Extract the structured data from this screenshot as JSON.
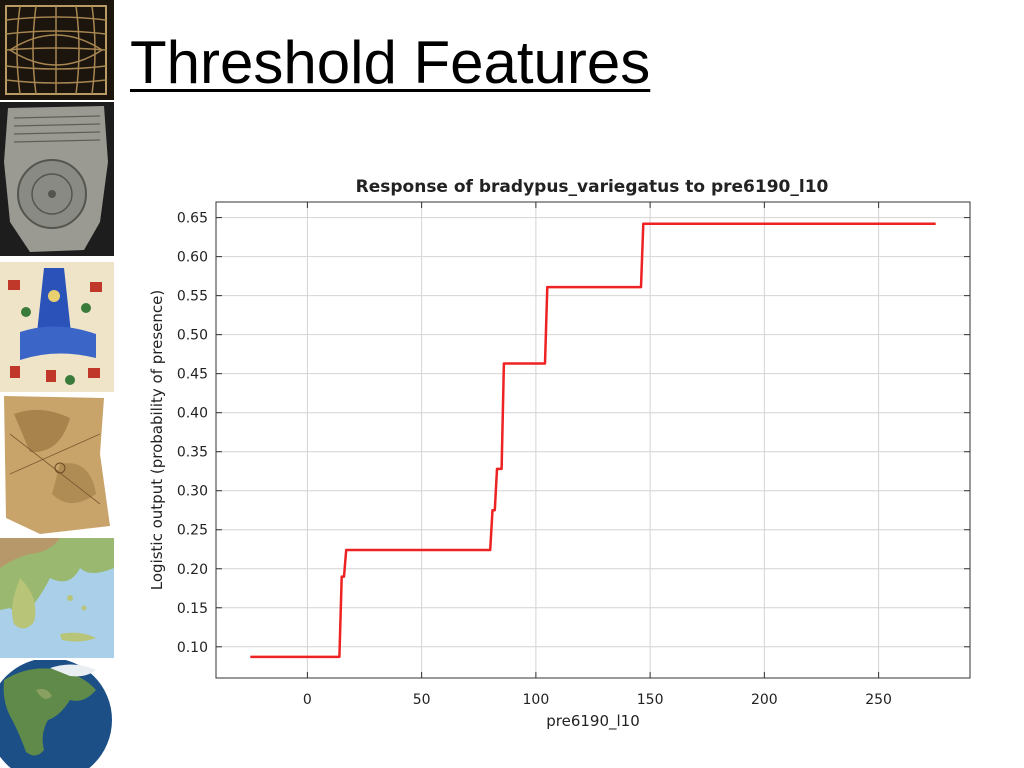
{
  "slide": {
    "title": "Threshold Features"
  },
  "sidebar": {
    "images": [
      {
        "icon": "grid-map-icon"
      },
      {
        "icon": "stone-tablet-map-icon"
      },
      {
        "icon": "illustrated-map-icon"
      },
      {
        "icon": "parchment-map-icon"
      },
      {
        "icon": "greece-map-icon"
      },
      {
        "icon": "globe-icon"
      }
    ]
  },
  "chart_data": {
    "type": "line",
    "title": "Response of bradypus_variegatus to pre6190_l10",
    "xlabel": "pre6190_l10",
    "ylabel": "Logistic output (probability of presence)",
    "xlim": [
      -40,
      290
    ],
    "ylim": [
      0.06,
      0.67
    ],
    "xticks": [
      0,
      50,
      100,
      150,
      200,
      250
    ],
    "yticks": [
      0.1,
      0.15,
      0.2,
      0.25,
      0.3,
      0.35,
      0.4,
      0.45,
      0.5,
      0.55,
      0.6,
      0.65
    ],
    "grid": true,
    "series": [
      {
        "color": "#ee2222",
        "points": [
          [
            -25,
            0.087
          ],
          [
            14,
            0.087
          ],
          [
            15,
            0.19
          ],
          [
            16,
            0.19
          ],
          [
            17,
            0.224
          ],
          [
            80,
            0.224
          ],
          [
            81,
            0.275
          ],
          [
            82,
            0.275
          ],
          [
            83,
            0.328
          ],
          [
            85,
            0.328
          ],
          [
            86,
            0.463
          ],
          [
            104,
            0.463
          ],
          [
            105,
            0.561
          ],
          [
            146,
            0.561
          ],
          [
            147,
            0.642
          ],
          [
            275,
            0.642
          ]
        ]
      }
    ]
  }
}
